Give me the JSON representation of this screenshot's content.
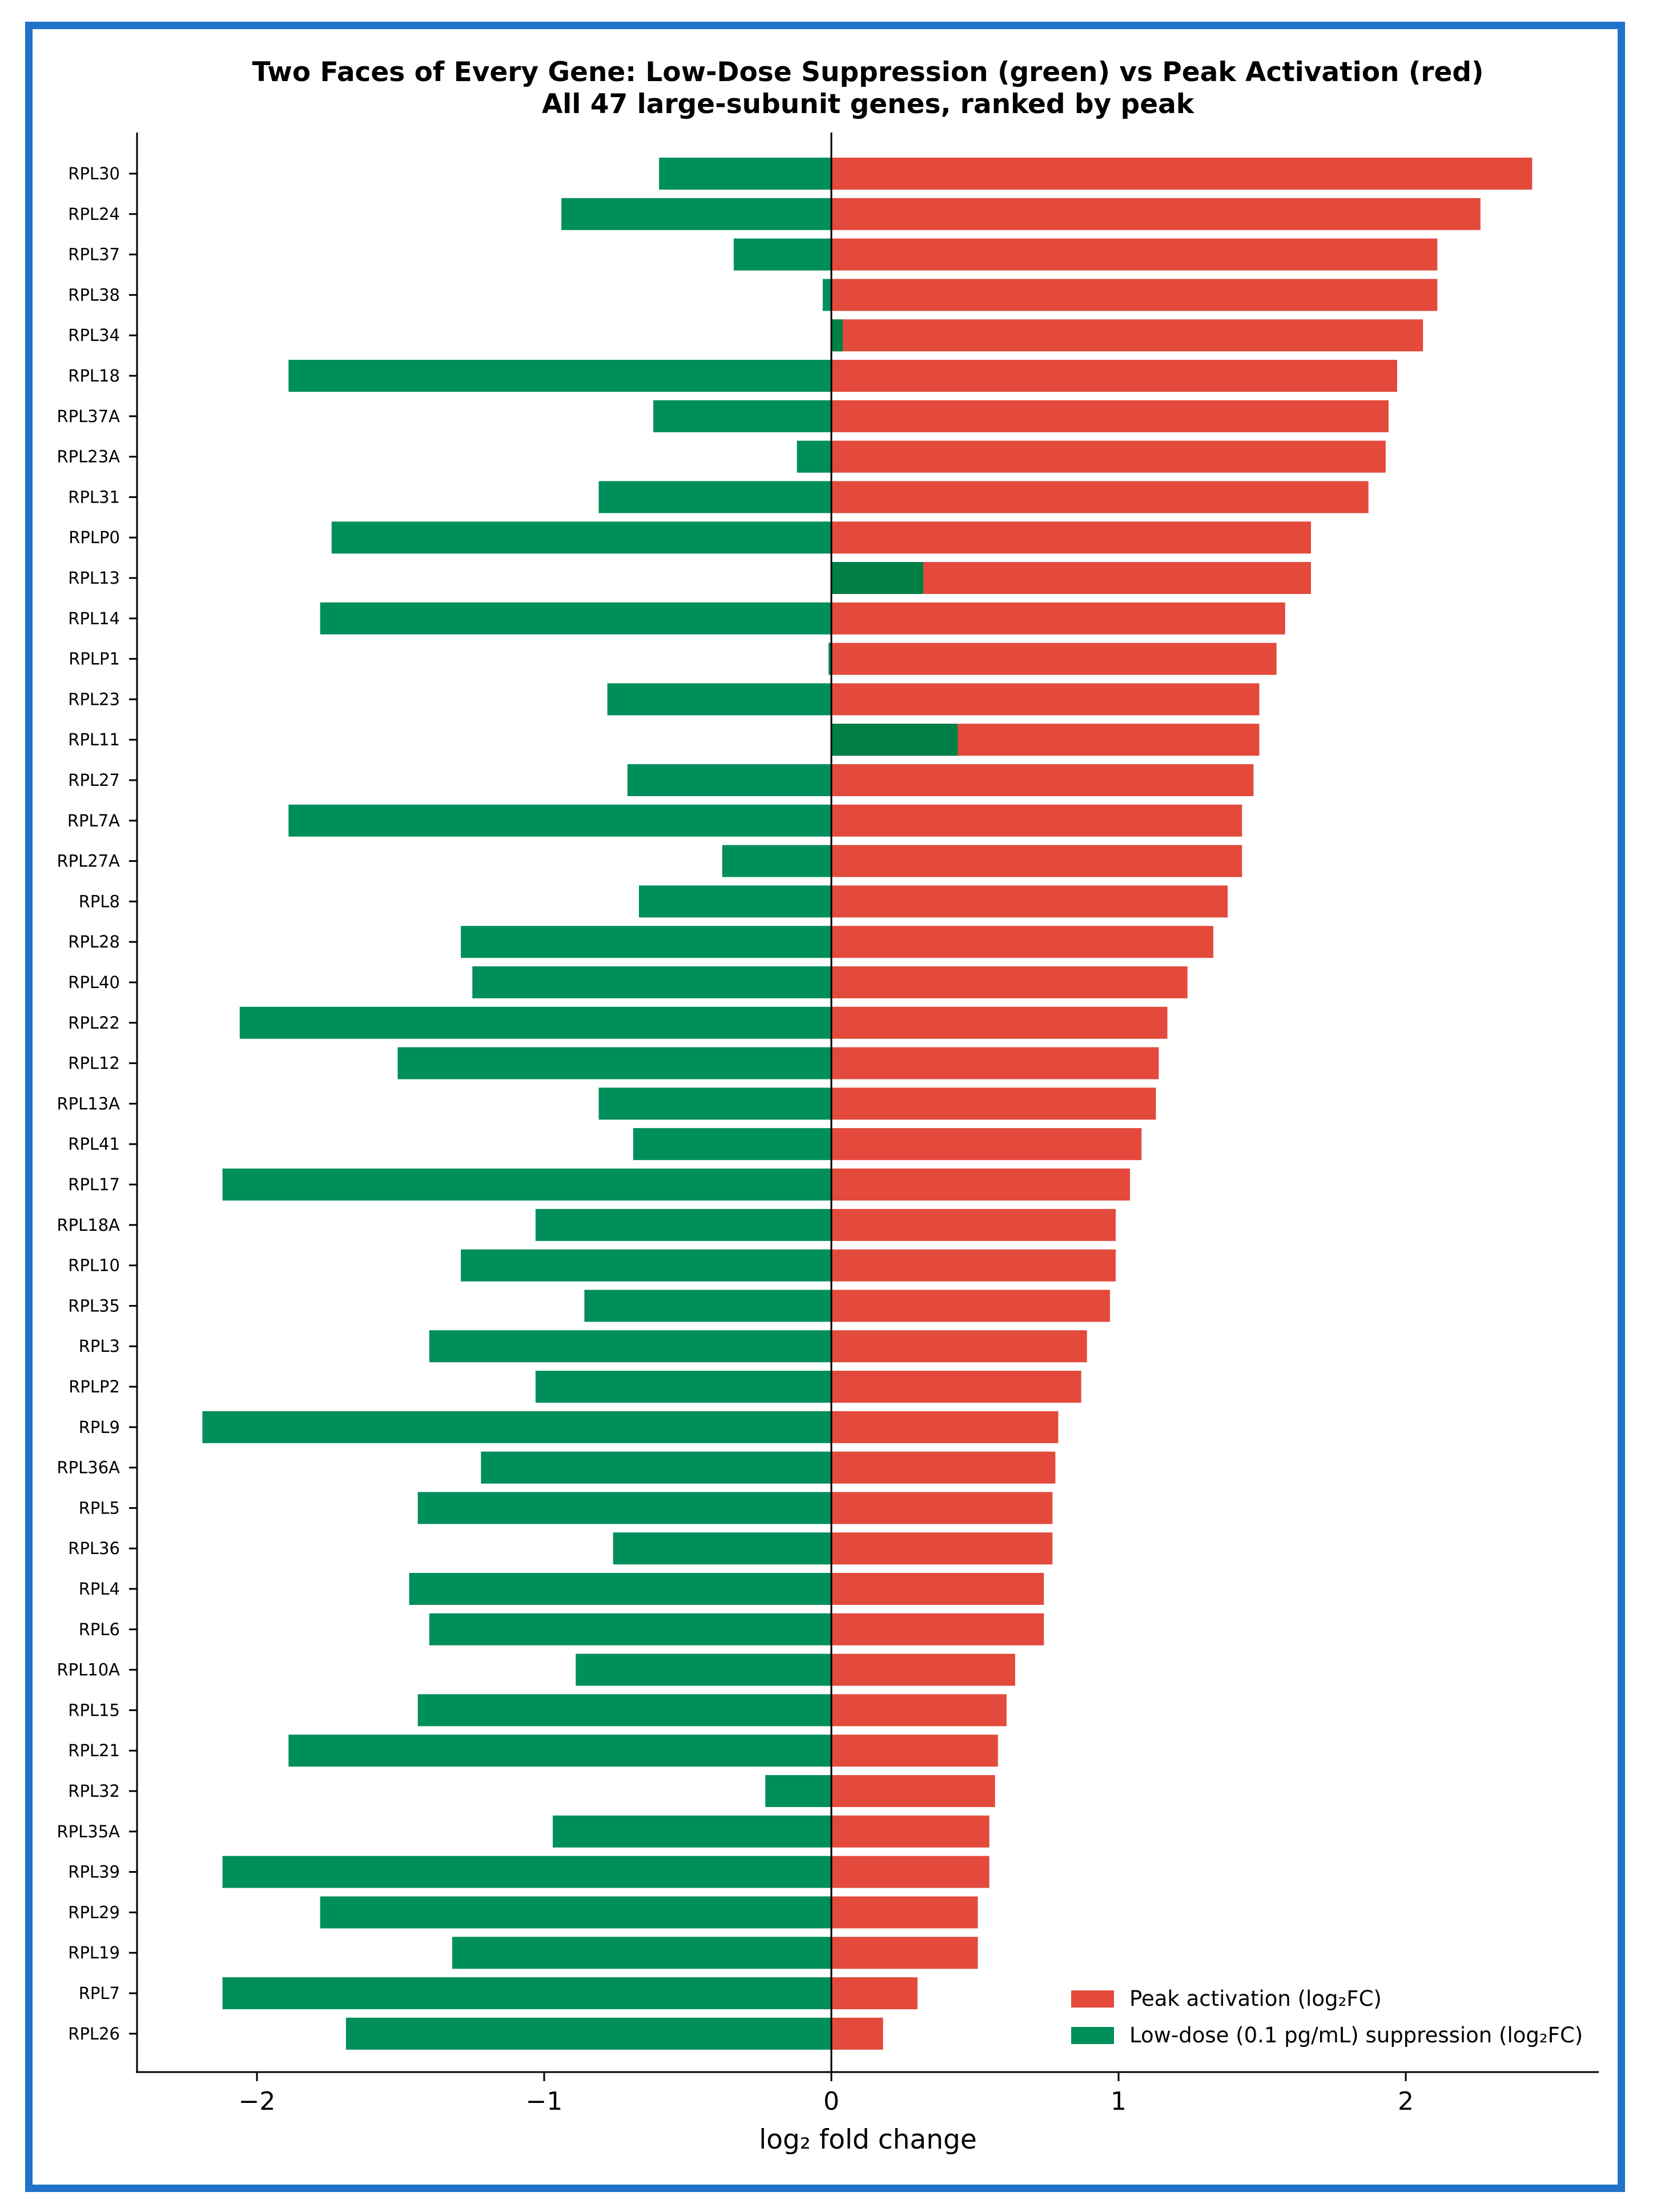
{
  "chart_data": {
    "type": "bar",
    "orientation": "horizontal",
    "title_line1": "Two Faces of Every Gene: Low-Dose Suppression (green) vs Peak Activation (red)",
    "title_line2": "All 47 large-subunit genes, ranked by peak",
    "xlabel": "log₂ fold change",
    "ylabel": "",
    "xlim": [
      -2.5,
      2.65
    ],
    "xticks": [
      -2,
      -1,
      0,
      1,
      2
    ],
    "xtick_labels": [
      "−2",
      "−1",
      "0",
      "1",
      "2"
    ],
    "legend_position": "lower-right",
    "grid": false,
    "categories": [
      "RPL30",
      "RPL24",
      "RPL37",
      "RPL38",
      "RPL34",
      "RPL18",
      "RPL37A",
      "RPL23A",
      "RPL31",
      "RPLP0",
      "RPL13",
      "RPL14",
      "RPLP1",
      "RPL23",
      "RPL11",
      "RPL27",
      "RPL7A",
      "RPL27A",
      "RPL8",
      "RPL28",
      "RPL40",
      "RPL22",
      "RPL12",
      "RPL13A",
      "RPL41",
      "RPL17",
      "RPL18A",
      "RPL10",
      "RPL35",
      "RPL3",
      "RPLP2",
      "RPL9",
      "RPL36A",
      "RPL5",
      "RPL36",
      "RPL4",
      "RPL6",
      "RPL10A",
      "RPL15",
      "RPL21",
      "RPL32",
      "RPL35A",
      "RPL39",
      "RPL29",
      "RPL19",
      "RPL7",
      "RPL26"
    ],
    "series": [
      {
        "name": "Peak activation (log₂FC)",
        "color": "#e34a3c",
        "values": [
          2.44,
          2.26,
          2.11,
          2.11,
          2.06,
          1.97,
          1.94,
          1.93,
          1.87,
          1.67,
          1.67,
          1.58,
          1.55,
          1.49,
          1.49,
          1.47,
          1.43,
          1.43,
          1.38,
          1.33,
          1.24,
          1.17,
          1.14,
          1.13,
          1.08,
          1.04,
          0.99,
          0.99,
          0.97,
          0.89,
          0.87,
          0.79,
          0.78,
          0.77,
          0.77,
          0.74,
          0.74,
          0.64,
          0.61,
          0.58,
          0.57,
          0.55,
          0.55,
          0.51,
          0.51,
          0.3,
          0.18
        ]
      },
      {
        "name": "Low-dose (0.1 pg/mL) suppression (log₂FC)",
        "color": "#008f5a",
        "values": [
          -0.6,
          -0.94,
          -0.34,
          -0.03,
          0.04,
          -1.89,
          -0.62,
          -0.12,
          -0.81,
          -1.74,
          0.32,
          -1.78,
          -0.01,
          -0.78,
          0.44,
          -0.71,
          -1.89,
          -0.38,
          -0.67,
          -1.29,
          -1.25,
          -2.06,
          -1.51,
          -0.81,
          -0.69,
          -2.12,
          -1.03,
          -1.29,
          -0.86,
          -1.4,
          -1.03,
          -2.19,
          -1.22,
          -1.44,
          -0.76,
          -1.47,
          -1.4,
          -0.89,
          -1.44,
          -1.89,
          -0.23,
          -0.97,
          -2.12,
          -1.78,
          -1.32,
          -2.12,
          -1.69
        ]
      }
    ]
  }
}
